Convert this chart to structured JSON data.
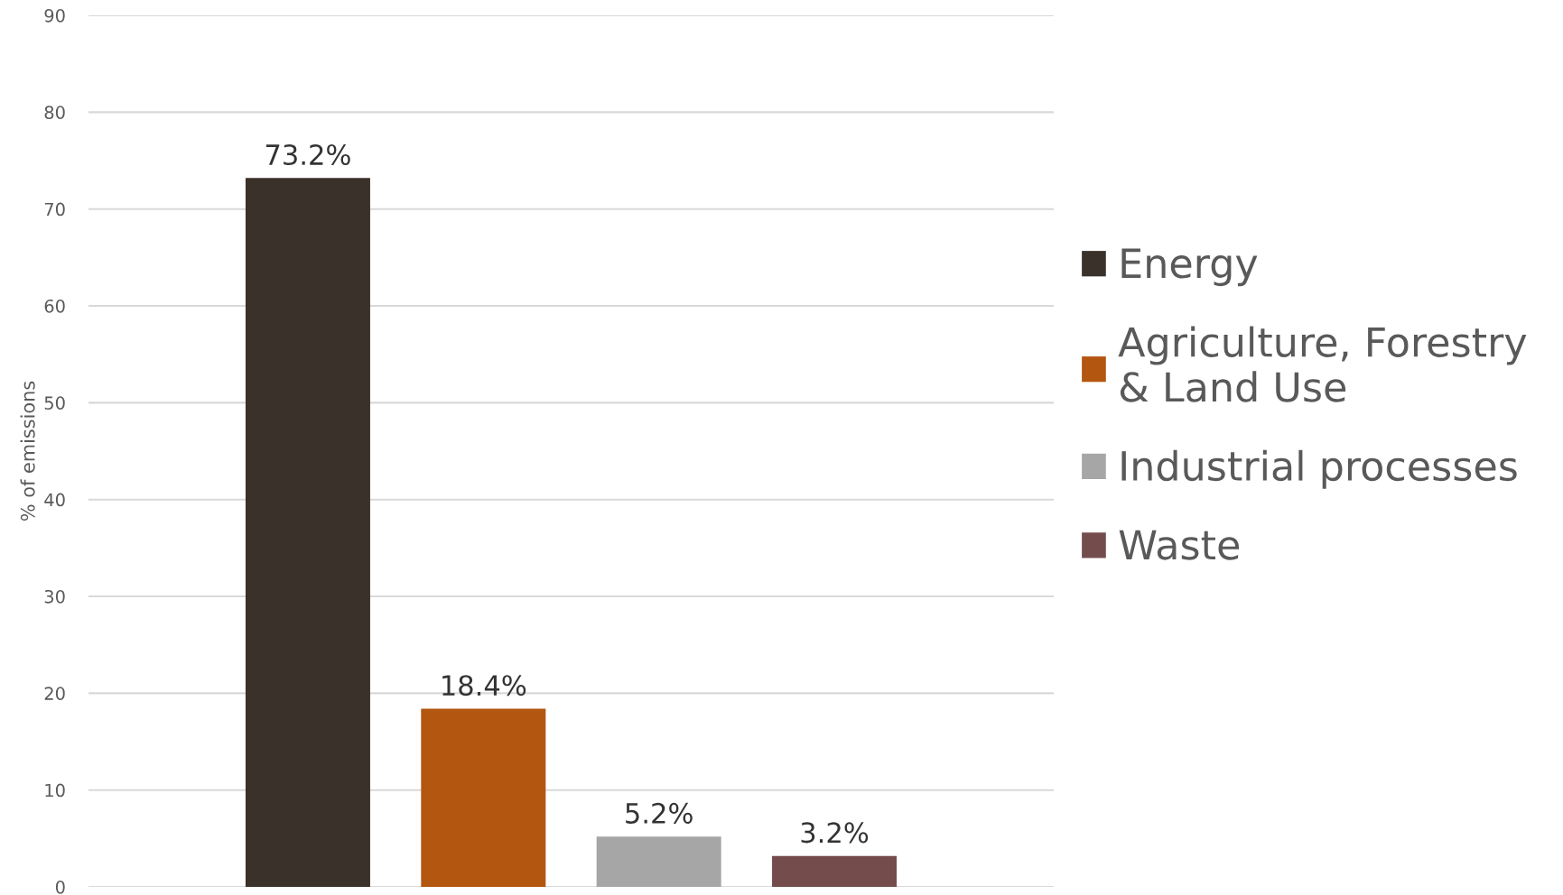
{
  "chart_data": {
    "type": "bar",
    "ylabel": "% of emissions",
    "categories": [
      null,
      null,
      null,
      null
    ],
    "series": [
      {
        "name": "Energy",
        "color": "#3b312b",
        "values": [
          73.2,
          null,
          null,
          null
        ],
        "value_labels": [
          "73.2%",
          null,
          null,
          null
        ]
      },
      {
        "name": "Agriculture, Forestry\n& Land Use",
        "color": "#b35610",
        "values": [
          null,
          18.4,
          null,
          null
        ],
        "value_labels": [
          null,
          "18.4%",
          null,
          null
        ]
      },
      {
        "name": "Industrial processes",
        "color": "#a6a6a6",
        "values": [
          null,
          null,
          5.2,
          null
        ],
        "value_labels": [
          null,
          null,
          "5.2%",
          null
        ]
      },
      {
        "name": "Waste",
        "color": "#754c4c",
        "values": [
          null,
          null,
          null,
          3.2
        ],
        "value_labels": [
          null,
          null,
          null,
          "3.2%"
        ]
      }
    ],
    "ylim": [
      0,
      90
    ],
    "yticks": [
      0,
      10,
      20,
      30,
      40,
      50,
      60,
      70,
      80,
      90
    ],
    "grid": "y",
    "legend": "right"
  }
}
